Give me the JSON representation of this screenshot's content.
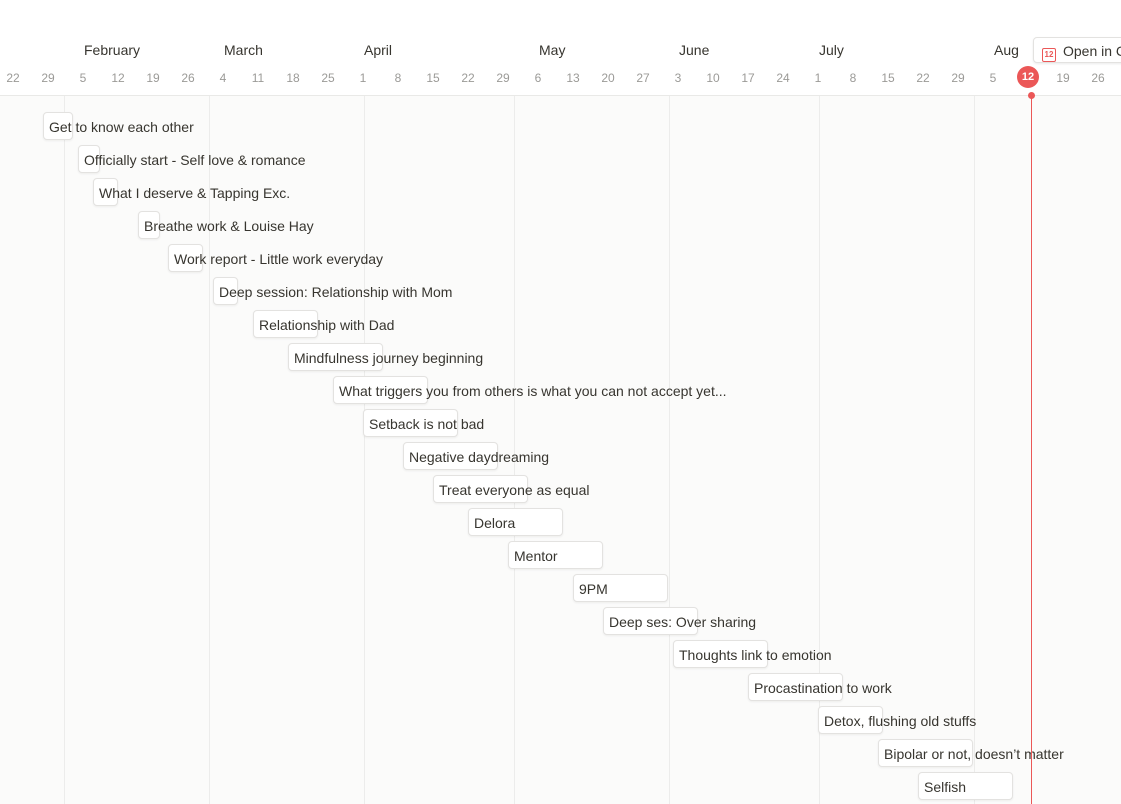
{
  "header": {
    "months": [
      "February",
      "March",
      "April",
      "May",
      "June",
      "July",
      "Aug"
    ],
    "days": [
      "22",
      "29",
      "5",
      "12",
      "19",
      "26",
      "4",
      "11",
      "18",
      "25",
      "1",
      "8",
      "15",
      "22",
      "29",
      "6",
      "13",
      "20",
      "27",
      "3",
      "10",
      "17",
      "24",
      "1",
      "8",
      "15",
      "22",
      "29",
      "5",
      "12",
      "19",
      "26"
    ],
    "today": "12",
    "open_in_calendar_label": "Open in Calendar"
  },
  "colors": {
    "accent_red": "#eb5757",
    "card_border": "#e3e2e0",
    "text": "#37352f",
    "muted_text": "#9b9a97"
  },
  "tasks": [
    {
      "title": "Get to know each other",
      "start": "2023-01-28",
      "end": "2023-02-03"
    },
    {
      "title": "Officially start - Self love & romance",
      "start": "2023-02-04",
      "end": "2023-02-06"
    },
    {
      "title": "What I deserve & Tapping Exc.",
      "start": "2023-02-07",
      "end": "2023-02-12"
    },
    {
      "title": "Breathe work & Louise Hay",
      "start": "2023-02-16",
      "end": "2023-02-19"
    },
    {
      "title": "Work report - Little work everyday",
      "start": "2023-02-22",
      "end": "2023-03-01"
    },
    {
      "title": "Deep session: Relationship with Mom",
      "start": "2023-03-03",
      "end": "2023-03-08"
    },
    {
      "title": "Relationship with Dad",
      "start": "2023-03-11",
      "end": "2023-03-24"
    },
    {
      "title": "Mindfulness journey beginning",
      "start": "2023-03-18",
      "end": "2023-04-06"
    },
    {
      "title": "What triggers you from others is what you can not accept yet...",
      "start": "2023-03-27",
      "end": "2023-04-15"
    },
    {
      "title": "Setback is not bad",
      "start": "2023-04-02",
      "end": "2023-04-21"
    },
    {
      "title": "Negative daydreaming",
      "start": "2023-04-10",
      "end": "2023-04-29"
    },
    {
      "title": "Treat everyone as equal",
      "start": "2023-04-16",
      "end": "2023-05-05"
    },
    {
      "title": "Delora",
      "start": "2023-04-23",
      "end": "2023-05-12"
    },
    {
      "title": "Mentor",
      "start": "2023-05-01",
      "end": "2023-05-20"
    },
    {
      "title": "9PM",
      "start": "2023-05-14",
      "end": "2023-06-02"
    },
    {
      "title": "Deep ses: Over sharing",
      "start": "2023-05-20",
      "end": "2023-06-08"
    },
    {
      "title": "Thoughts link to emotion",
      "start": "2023-06-03",
      "end": "2023-06-22"
    },
    {
      "title": "Procastination to work",
      "start": "2023-06-18",
      "end": "2023-07-07"
    },
    {
      "title": "Detox, flushing old stuffs",
      "start": "2023-07-02",
      "end": "2023-07-15"
    },
    {
      "title": "Bipolar or not, doesn’t matter",
      "start": "2023-07-14",
      "end": "2023-08-02"
    },
    {
      "title": "Selfish",
      "start": "2023-07-22",
      "end": "2023-08-10"
    }
  ]
}
